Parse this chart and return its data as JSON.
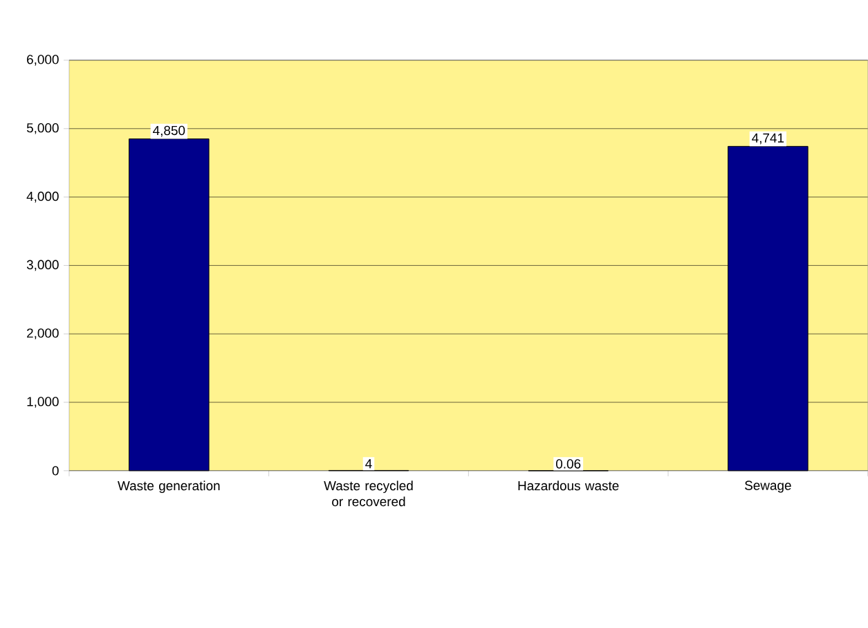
{
  "chart_data": {
    "type": "bar",
    "categories": [
      "Waste generation",
      "Waste recycled or recovered",
      "Hazardous waste",
      "Sewage"
    ],
    "values": [
      4850,
      4,
      0.06,
      4741
    ],
    "value_labels": [
      "4,850",
      "4",
      "0.06",
      "4,741"
    ],
    "color": "#00008b",
    "ylim": [
      0,
      6000
    ],
    "yticks": [
      {
        "value": 0,
        "label": "0"
      },
      {
        "value": 1000,
        "label": "1,000"
      },
      {
        "value": 2000,
        "label": "2,000"
      },
      {
        "value": 3000,
        "label": "3,000"
      },
      {
        "value": 4000,
        "label": "4,000"
      },
      {
        "value": 5000,
        "label": "5,000"
      },
      {
        "value": 6000,
        "label": "6,000"
      }
    ],
    "grid": "y"
  }
}
